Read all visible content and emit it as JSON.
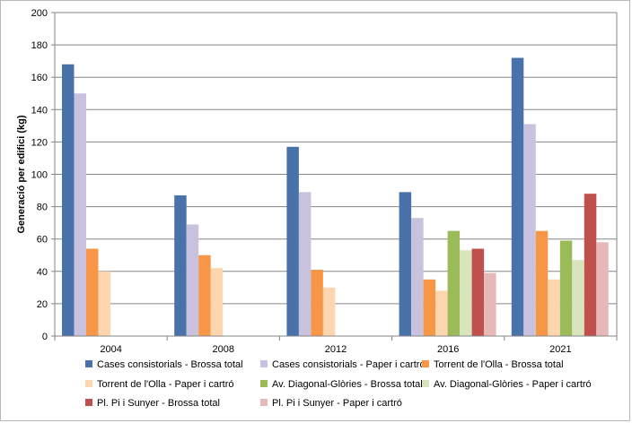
{
  "chart_data": {
    "type": "bar",
    "title": "",
    "xlabel": "",
    "ylabel": "Generació per edifici (kg)",
    "ylim": [
      0,
      200
    ],
    "yticks": [
      0,
      20,
      40,
      60,
      80,
      100,
      120,
      140,
      160,
      180,
      200
    ],
    "grid": true,
    "legend_position": "bottom",
    "categories": [
      "2004",
      "2008",
      "2012",
      "2016",
      "2021"
    ],
    "series": [
      {
        "name": "Cases consistorials - Brossa total",
        "color": "#4a72aa",
        "values": [
          168,
          87,
          117,
          89,
          172
        ]
      },
      {
        "name": "Cases consistorials - Paper i cartró",
        "color": "#c9c2df",
        "values": [
          150,
          69,
          89,
          73,
          131
        ]
      },
      {
        "name": "Torrent de l'Olla - Brossa total",
        "color": "#f79646",
        "values": [
          54,
          50,
          41,
          35,
          65
        ]
      },
      {
        "name": "Torrent de l'Olla - Paper i cartró",
        "color": "#fdd6b0",
        "values": [
          40,
          42,
          30,
          28,
          35
        ]
      },
      {
        "name": "Av. Diagonal-Glòries - Brossa total",
        "color": "#9bbb59",
        "values": [
          null,
          null,
          null,
          65,
          59
        ]
      },
      {
        "name": "Av. Diagonal-Glòries - Paper i cartró",
        "color": "#d7e4bd",
        "values": [
          null,
          null,
          null,
          53,
          47
        ]
      },
      {
        "name": "Pl. Pi i Sunyer - Brossa total",
        "color": "#c0504d",
        "values": [
          null,
          null,
          null,
          54,
          88
        ]
      },
      {
        "name": "Pl. Pi i Sunyer - Paper i cartró",
        "color": "#e6b9b8",
        "values": [
          null,
          null,
          null,
          39,
          58
        ]
      }
    ]
  }
}
